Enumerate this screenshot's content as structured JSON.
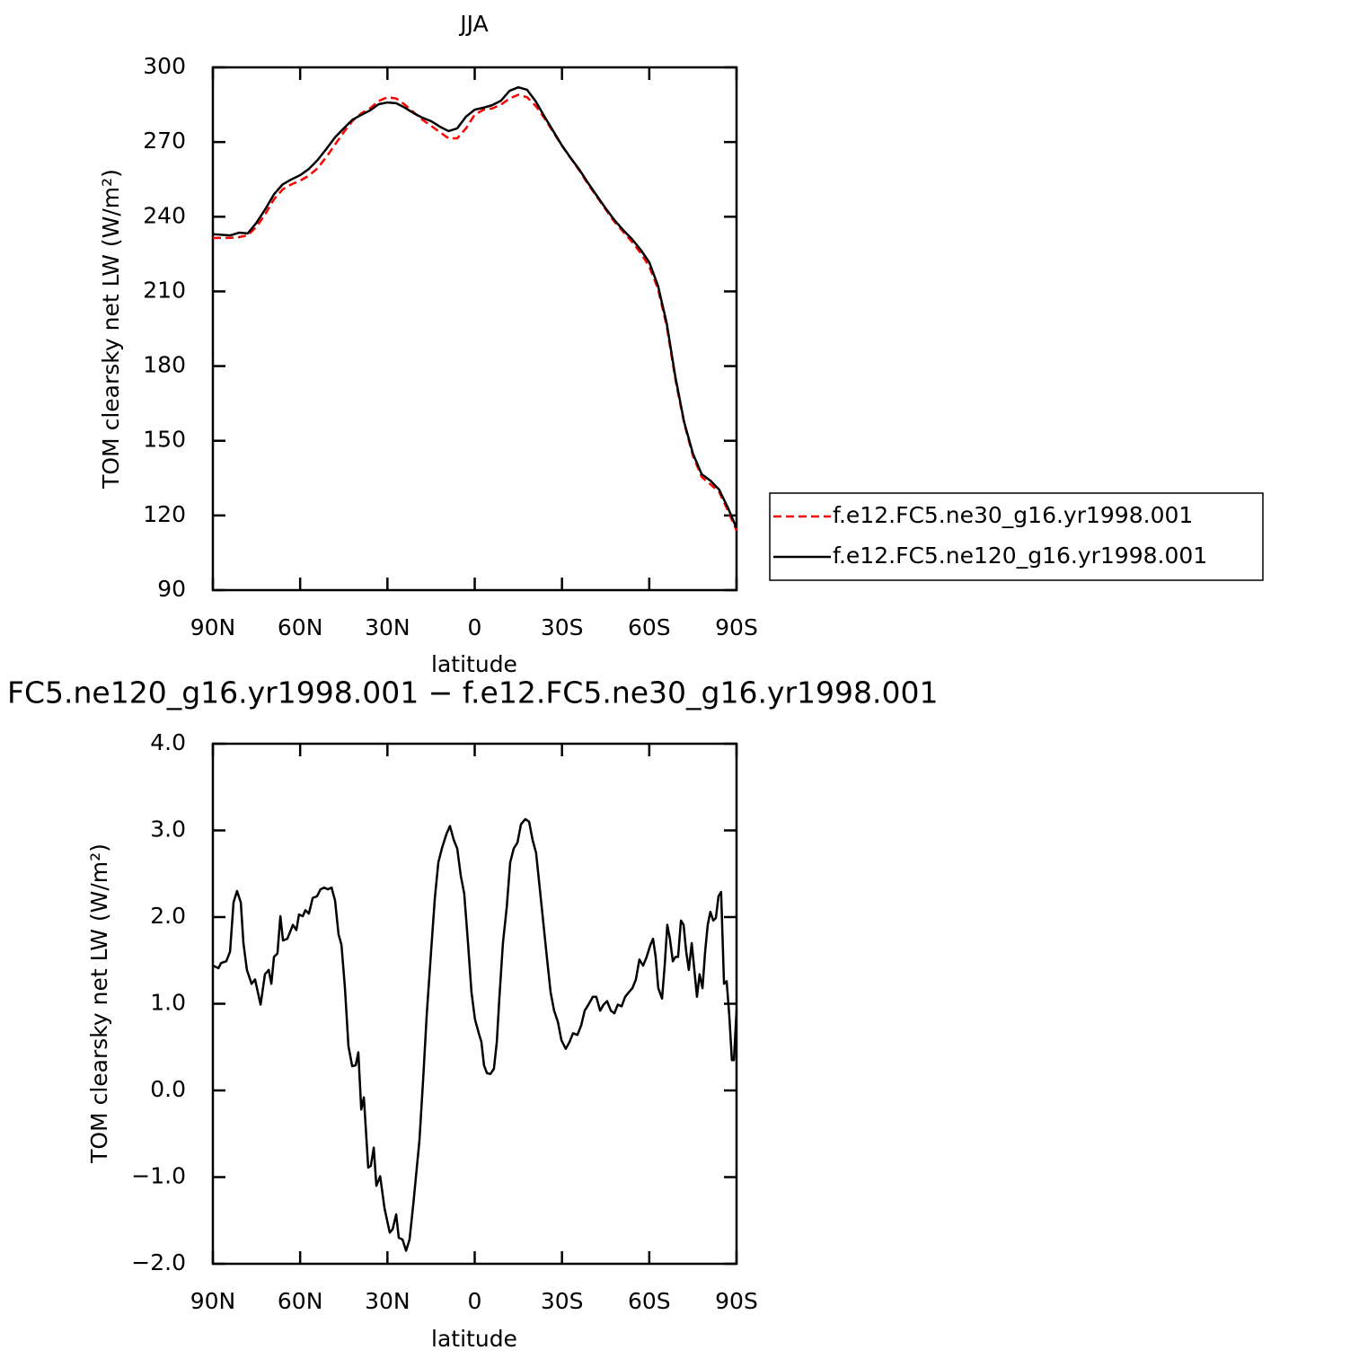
{
  "chart_data": [
    {
      "type": "line",
      "title": "JJA",
      "xlabel": "latitude",
      "ylabel": "TOM clearsky net LW (W/m²)",
      "xlim": [
        90,
        -90
      ],
      "ylim": [
        90,
        300
      ],
      "xticks": [
        {
          "value": 90,
          "label": "90N"
        },
        {
          "value": 60,
          "label": "60N"
        },
        {
          "value": 30,
          "label": "30N"
        },
        0,
        {
          "value": -30,
          "label": "30S"
        },
        {
          "value": -60,
          "label": "60S"
        },
        {
          "value": -90,
          "label": "90S"
        }
      ],
      "yticks": [
        90,
        120,
        150,
        180,
        210,
        240,
        270,
        300
      ],
      "legend": "right",
      "x": [
        90,
        84,
        81,
        78,
        75,
        72,
        69,
        66,
        63,
        60,
        57,
        54,
        51,
        48,
        45,
        42,
        39,
        36,
        33,
        30,
        27,
        24,
        21,
        18,
        15,
        12,
        9,
        6,
        3,
        0,
        -3,
        -6,
        -9,
        -12,
        -15,
        -18,
        -21,
        -24,
        -27,
        -30,
        -33,
        -36,
        -39,
        -42,
        -45,
        -48,
        -51,
        -54,
        -57,
        -60,
        -63,
        -66,
        -69,
        -72,
        -75,
        -78,
        -81,
        -84,
        -87,
        -90
      ],
      "series": [
        {
          "name": "f.e12.FC5.ne30_g16.yr1998.001",
          "color": "#ff0000",
          "dashed": true,
          "values": [
            231.5,
            231.5,
            231.8,
            232.5,
            236,
            241,
            247,
            251,
            253,
            254.5,
            256.5,
            259.5,
            264,
            269,
            274,
            278.5,
            281.5,
            283.5,
            286.5,
            288,
            287.5,
            285,
            282,
            279,
            276.5,
            274,
            271.5,
            271.5,
            275.5,
            281,
            283,
            283.5,
            285,
            287.5,
            289,
            288,
            284.5,
            279.5,
            274,
            268.5,
            263.5,
            258.5,
            253,
            248,
            243,
            238,
            234,
            230,
            225.5,
            220,
            211,
            196,
            174.5,
            157,
            144,
            135.5,
            132.5,
            129.5,
            122,
            114
          ]
        },
        {
          "name": "f.e12.FC5.ne120_g16.yr1998.001",
          "color": "#000000",
          "dashed": false,
          "values": [
            233,
            232.5,
            233.6,
            233.3,
            237.6,
            243,
            249,
            253,
            255,
            256.7,
            259.2,
            262.8,
            267.2,
            271.9,
            275.5,
            279,
            280.9,
            282.7,
            285.2,
            285.9,
            285.6,
            283.8,
            281.6,
            279.8,
            278.4,
            276.2,
            274.4,
            275.5,
            280.2,
            283,
            283.8,
            284.8,
            286.6,
            290.6,
            292,
            291,
            286.3,
            280.2,
            274.4,
            268.6,
            263.6,
            258.9,
            253.5,
            248.4,
            243.4,
            238.7,
            234.7,
            231.1,
            226.8,
            221.7,
            212.3,
            197.2,
            175.5,
            157.5,
            144.9,
            136.6,
            134,
            130.4,
            123.2,
            114.9
          ]
        }
      ]
    },
    {
      "type": "line",
      "title": "FC5.ne120_g16.yr1998.001 − f.e12.FC5.ne30_g16.yr1998.001",
      "xlabel": "latitude",
      "ylabel": "TOM clearsky net LW (W/m²)",
      "xlim": [
        90,
        -90
      ],
      "ylim": [
        -2,
        4
      ],
      "xticks": [
        {
          "value": 90,
          "label": "90N"
        },
        {
          "value": 60,
          "label": "60N"
        },
        {
          "value": 30,
          "label": "30N"
        },
        0,
        {
          "value": -30,
          "label": "30S"
        },
        {
          "value": -60,
          "label": "60S"
        },
        {
          "value": -90,
          "label": "90S"
        }
      ],
      "yticks": [
        {
          "value": -2,
          "label": "−2.0"
        },
        {
          "value": -1,
          "label": "−1.0"
        },
        {
          "value": 0,
          "label": "0.0"
        },
        {
          "value": 1,
          "label": "1.0"
        },
        {
          "value": 2,
          "label": "2.0"
        },
        {
          "value": 3,
          "label": "3.0"
        },
        {
          "value": 4,
          "label": "4.0"
        }
      ],
      "color": "#000000",
      "x": [
        90,
        88.1,
        87.2,
        85.4,
        84.1,
        82.9,
        81.7,
        80.4,
        79.5,
        78.3,
        76.7,
        75.5,
        73.6,
        72.1,
        70.8,
        69.9,
        69.0,
        67.8,
        66.8,
        65.9,
        64.4,
        62.5,
        61.3,
        60.4,
        59.1,
        58.2,
        57.0,
        55.7,
        54.2,
        53.0,
        51.7,
        50.5,
        49.2,
        48.0,
        46.8,
        45.8,
        44.6,
        43.4,
        42.1,
        40.9,
        40.0,
        39.0,
        38.1,
        36.6,
        35.7,
        34.7,
        33.8,
        32.5,
        31.0,
        29.2,
        28.2,
        27.0,
        26.1,
        24.8,
        23.6,
        22.4,
        21.1,
        19.9,
        19.0,
        17.7,
        16.5,
        15.0,
        13.7,
        12.5,
        11.3,
        9.7,
        8.5,
        7.2,
        6.0,
        4.8,
        3.6,
        2.3,
        1.1,
        -0.1,
        -1.4,
        -2.3,
        -3.2,
        -4.2,
        -5.4,
        -6.6,
        -7.6,
        -8.5,
        -9.7,
        -11.0,
        -12.2,
        -13.4,
        -14.7,
        -15.9,
        -17.4,
        -18.7,
        -19.9,
        -21.1,
        -22.4,
        -23.6,
        -24.8,
        -26.1,
        -27.3,
        -28.6,
        -29.8,
        -31.3,
        -32.6,
        -33.8,
        -35.3,
        -36.6,
        -37.8,
        -39.1,
        -40.6,
        -41.8,
        -43.1,
        -44.3,
        -45.5,
        -46.8,
        -48.0,
        -49.2,
        -50.5,
        -51.7,
        -52.9,
        -54.2,
        -55.4,
        -56.6,
        -57.9,
        -59.1,
        -60.4,
        -61.3,
        -62.2,
        -63.1,
        -64.4,
        -65.3,
        -66.2,
        -67.1,
        -68.1,
        -69.0,
        -69.9,
        -70.9,
        -71.8,
        -72.7,
        -73.6,
        -74.6,
        -75.5,
        -76.4,
        -77.3,
        -78.3,
        -79.2,
        -80.1,
        -81.0,
        -82.0,
        -82.9,
        -83.8,
        -84.7,
        -85.7,
        -86.6,
        -87.5,
        -88.4,
        -89.1,
        -90
      ],
      "values": [
        1.44,
        1.41,
        1.47,
        1.49,
        1.6,
        2.17,
        2.3,
        2.17,
        1.7,
        1.39,
        1.23,
        1.28,
        0.99,
        1.34,
        1.39,
        1.23,
        1.54,
        1.58,
        2.01,
        1.73,
        1.75,
        1.91,
        1.85,
        2.03,
        2.01,
        2.08,
        2.04,
        2.22,
        2.24,
        2.32,
        2.34,
        2.32,
        2.34,
        2.19,
        1.8,
        1.68,
        1.18,
        0.51,
        0.28,
        0.29,
        0.44,
        -0.22,
        -0.08,
        -0.89,
        -0.87,
        -0.66,
        -1.1,
        -0.99,
        -1.36,
        -1.64,
        -1.6,
        -1.43,
        -1.7,
        -1.72,
        -1.85,
        -1.72,
        -1.31,
        -0.89,
        -0.58,
        0.14,
        0.87,
        1.6,
        2.22,
        2.63,
        2.79,
        2.96,
        3.05,
        2.89,
        2.79,
        2.48,
        2.27,
        1.7,
        1.13,
        0.82,
        0.66,
        0.56,
        0.29,
        0.2,
        0.19,
        0.25,
        0.56,
        1.08,
        1.7,
        2.11,
        2.63,
        2.79,
        2.86,
        3.07,
        3.13,
        3.1,
        2.89,
        2.74,
        2.32,
        1.93,
        1.54,
        1.13,
        0.92,
        0.79,
        0.58,
        0.48,
        0.56,
        0.66,
        0.64,
        0.75,
        0.92,
        0.99,
        1.08,
        1.08,
        0.92,
        0.99,
        1.03,
        0.92,
        0.89,
        0.99,
        0.97,
        1.08,
        1.13,
        1.18,
        1.28,
        1.51,
        1.44,
        1.54,
        1.68,
        1.75,
        1.54,
        1.18,
        1.06,
        1.44,
        1.91,
        1.75,
        1.49,
        1.54,
        1.54,
        1.96,
        1.91,
        1.6,
        1.39,
        1.7,
        1.39,
        1.08,
        1.34,
        1.18,
        1.6,
        1.91,
        2.06,
        1.96,
        1.99,
        2.24,
        2.29,
        1.23,
        1.26,
        0.87,
        0.35,
        0.35,
        0.92
      ]
    }
  ]
}
